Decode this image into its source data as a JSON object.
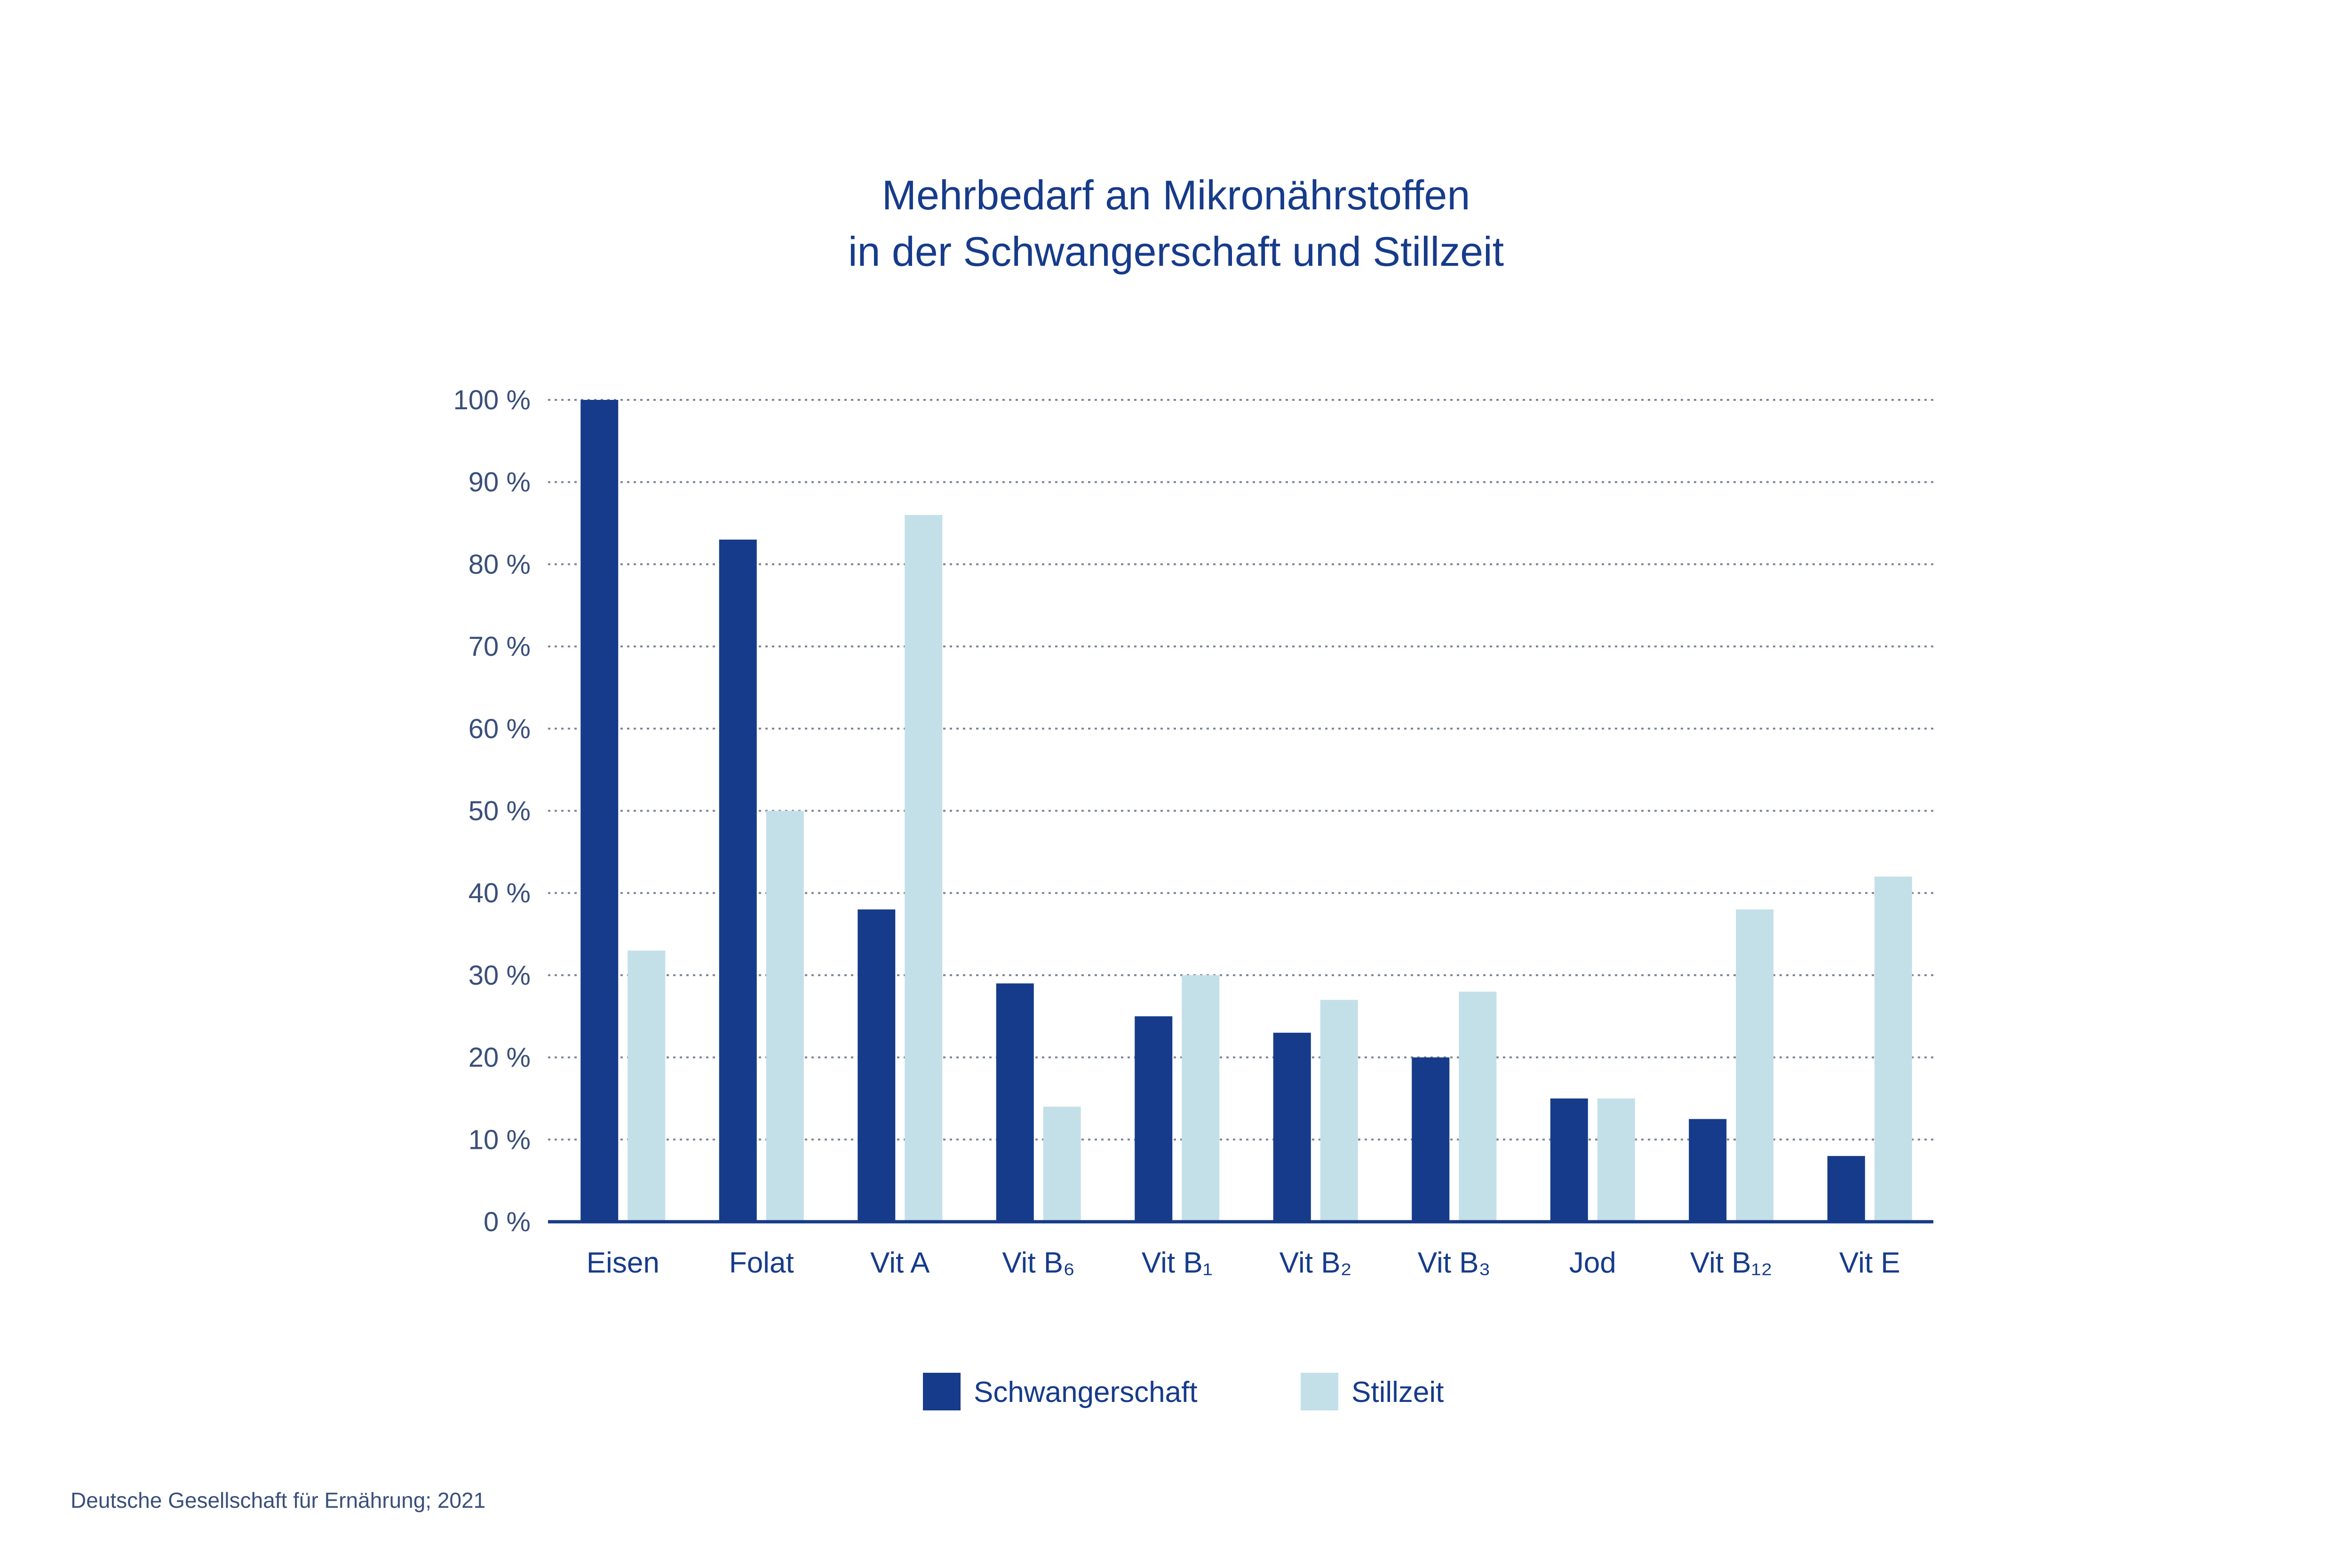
{
  "chart_data": {
    "type": "bar",
    "title": [
      "Mehrbedarf an Mikronährstoffen",
      "in der Schwangerschaft und Stillzeit"
    ],
    "xlabel": "",
    "ylabel": "",
    "ylim": [
      0,
      100
    ],
    "yticks": [
      0,
      10,
      20,
      30,
      40,
      50,
      60,
      70,
      80,
      90,
      100
    ],
    "ytick_labels": [
      "0 %",
      "10 %",
      "20 %",
      "30 %",
      "40 %",
      "50 %",
      "60 %",
      "70 %",
      "80 %",
      "90 %",
      "100 %"
    ],
    "grid": true,
    "legend_position": "bottom-center",
    "categories": [
      "Eisen",
      "Folat",
      "Vit A",
      "Vit B₆",
      "Vit B₁",
      "Vit B₂",
      "Vit B₃",
      "Jod",
      "Vit B₁₂",
      "Vit E"
    ],
    "series": [
      {
        "name": "Schwangerschaft",
        "color": "#163b8a",
        "values": [
          100,
          83,
          38,
          29,
          25,
          23,
          20,
          15,
          12.5,
          8
        ]
      },
      {
        "name": "Stillzeit",
        "color": "#c3e0e8",
        "values": [
          33,
          50,
          86,
          14,
          30,
          27,
          28,
          15,
          38,
          42
        ]
      }
    ]
  },
  "source": "Deutsche Gesellschaft für Ernährung; 2021"
}
